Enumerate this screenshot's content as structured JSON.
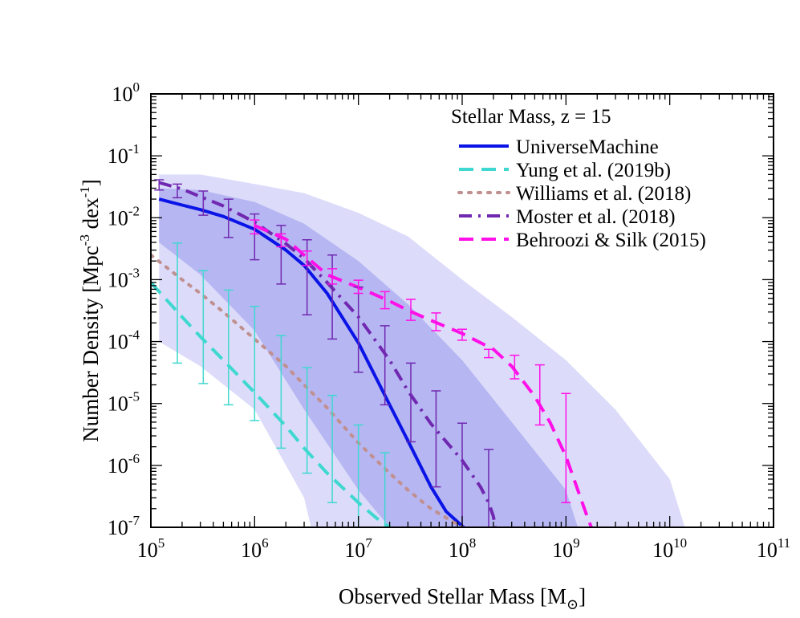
{
  "chart_data": {
    "type": "line",
    "title": "",
    "xlabel": "Observed Stellar Mass [M",
    "xlabel_sub": "⊙",
    "xlabel_close": "]",
    "ylabel": "Number Density [Mpc",
    "ylabel_exp1": "-3",
    "ylabel_mid": " dex",
    "ylabel_exp2": "-1",
    "ylabel_close": "]",
    "xscale": "log",
    "yscale": "log",
    "xlim": [
      100000,
      100000000000
    ],
    "ylim": [
      1e-07,
      1
    ],
    "x_ticks": [
      {
        "base": "10",
        "exp": "5"
      },
      {
        "base": "10",
        "exp": "6"
      },
      {
        "base": "10",
        "exp": "7"
      },
      {
        "base": "10",
        "exp": "8"
      },
      {
        "base": "10",
        "exp": "9"
      },
      {
        "base": "10",
        "exp": "10"
      },
      {
        "base": "10",
        "exp": "11"
      }
    ],
    "y_ticks": [
      {
        "base": "10",
        "exp": "-7"
      },
      {
        "base": "10",
        "exp": "-6"
      },
      {
        "base": "10",
        "exp": "-5"
      },
      {
        "base": "10",
        "exp": "-4"
      },
      {
        "base": "10",
        "exp": "-3"
      },
      {
        "base": "10",
        "exp": "-2"
      },
      {
        "base": "10",
        "exp": "-1"
      },
      {
        "base": "10",
        "exp": "0"
      }
    ],
    "legend_title": "Stellar Mass, z = 15",
    "legend_position": "top-right",
    "grid": false,
    "bands": [
      {
        "color": "#dcdcfa",
        "x": [
          120000,
          300000,
          1000000,
          3000000,
          10000000,
          30000000,
          100000000,
          300000000,
          1000000000,
          3000000000,
          10000000000,
          14000000000,
          10000000000,
          3000000000,
          1000000000,
          300000000,
          100000000,
          30000000,
          10000000,
          5000000,
          3500000,
          3000000,
          1000000,
          300000,
          120000
        ],
        "y": [
          0.05,
          0.05,
          0.035,
          0.025,
          0.012,
          0.005,
          0.001,
          0.00025,
          5e-05,
          8e-06,
          6e-07,
          1e-07,
          1e-07,
          1e-07,
          1e-07,
          1e-07,
          1e-07,
          1e-07,
          1e-07,
          1e-07,
          1e-07,
          3e-07,
          8e-06,
          4e-05,
          0.0001
        ]
      },
      {
        "color": "#b6b6f2",
        "x": [
          120000,
          300000,
          1000000,
          3000000,
          10000000,
          30000000,
          100000000,
          300000000,
          1000000000,
          1300000000,
          1000000000,
          300000000,
          100000000,
          30000000,
          20000000,
          10000000,
          3000000,
          1000000,
          300000,
          120000
        ],
        "y": [
          0.03,
          0.028,
          0.018,
          0.008,
          0.002,
          0.0004,
          5e-05,
          5e-06,
          4e-07,
          1e-07,
          1e-07,
          1e-07,
          1e-07,
          1e-07,
          1e-07,
          4e-07,
          8e-06,
          0.00015,
          0.0012,
          0.004
        ]
      }
    ],
    "series": [
      {
        "name": "UniverseMachine",
        "color": "#0a14e6",
        "dash": "solid",
        "x": [
          120000,
          200000,
          300000,
          500000,
          1000000,
          2000000,
          3000000,
          5000000,
          10000000,
          20000000,
          30000000,
          50000000,
          70000000,
          100000000,
          110000000
        ],
        "y": [
          0.02,
          0.016,
          0.0135,
          0.0105,
          0.0065,
          0.003,
          0.0017,
          0.0006,
          9.5e-05,
          9.5e-06,
          2.5e-06,
          4.5e-07,
          1.8e-07,
          1.05e-07,
          9e-08
        ]
      },
      {
        "name": "Yung et al. (2019b)",
        "color": "#3fd8d0",
        "dash": "longdash",
        "x": [
          100000,
          200000,
          300000,
          500000,
          1000000,
          2000000,
          3000000,
          5000000,
          10000000,
          15000000,
          20000000,
          25000000
        ],
        "y": [
          0.0009,
          0.00025,
          0.00012,
          5e-05,
          1.5e-05,
          4.3e-06,
          1.9e-06,
          7.5e-07,
          2.5e-07,
          1.4e-07,
          1e-07,
          8e-08
        ]
      },
      {
        "name": "Williams et al. (2018)",
        "color": "#c09090",
        "dash": "dotted",
        "x": [
          100000,
          200000,
          300000,
          500000,
          1000000,
          2000000,
          3000000,
          5000000,
          10000000,
          20000000,
          30000000,
          50000000,
          100000000,
          150000000
        ],
        "y": [
          0.0025,
          0.001,
          0.0006,
          0.0003,
          0.00011,
          4e-05,
          2e-05,
          8.5e-06,
          2.3e-06,
          7.5e-07,
          4e-07,
          2e-07,
          1e-07,
          8e-08
        ]
      },
      {
        "name": "Moster et al. (2018)",
        "color": "#7028b0",
        "dash": "dashdot",
        "x": [
          120000,
          200000,
          300000,
          500000,
          1000000,
          2000000,
          3000000,
          5000000,
          10000000,
          20000000,
          30000000,
          50000000,
          100000000,
          150000000,
          180000000,
          200000000,
          210000000
        ],
        "y": [
          0.037,
          0.029,
          0.022,
          0.0155,
          0.0085,
          0.0038,
          0.0022,
          0.0009,
          0.00025,
          5e-05,
          1.6e-05,
          4.7e-06,
          1.2e-06,
          4.5e-07,
          2.5e-07,
          1.5e-07,
          9e-08
        ]
      },
      {
        "name": "Behroozi & Silk (2015)",
        "color": "#ff10e8",
        "dash": "longdash",
        "x": [
          1000000,
          2000000,
          3000000,
          5000000,
          10000000,
          20000000,
          30000000,
          50000000,
          100000000,
          200000000,
          300000000,
          500000000,
          700000000,
          1000000000,
          1300000000,
          1600000000,
          1800000000
        ],
        "y": [
          0.0075,
          0.0045,
          0.0025,
          0.0012,
          0.00075,
          0.00045,
          0.00032,
          0.00022,
          0.000135,
          7.5e-05,
          4e-05,
          1.3e-05,
          5e-06,
          1.4e-06,
          4e-07,
          1.5e-07,
          9e-08
        ]
      }
    ],
    "errorbars": [
      {
        "series": "Yung et al. (2019b)",
        "color": "#3fd8d0",
        "x": [
          180000,
          320000,
          560000,
          1000000,
          1800000,
          3200000,
          5600000,
          10000000,
          18000000
        ],
        "y": [
          0.00025,
          0.00012,
          5e-05,
          1.5e-05,
          4.3e-06,
          1.9e-06,
          7.5e-07,
          2.5e-07,
          1.2e-07
        ],
        "lo": [
          4.5e-05,
          2.1e-05,
          9.5e-06,
          5.3e-06,
          1.9e-06,
          7.5e-07,
          2.5e-07,
          1e-07,
          1e-07
        ],
        "hi": [
          0.0039,
          0.0014,
          0.00068,
          0.00037,
          0.000125,
          3.8e-05,
          1.35e-05,
          4.5e-06,
          1.6e-06
        ]
      },
      {
        "series": "Moster et al. (2018)",
        "color": "#7028b0",
        "x": [
          120000,
          180000,
          320000,
          560000,
          1000000,
          1800000,
          3200000,
          5600000,
          10000000,
          18000000,
          32000000,
          56000000,
          100000000,
          180000000
        ],
        "y": [
          0.037,
          0.03,
          0.022,
          0.015,
          0.0085,
          0.0042,
          0.002,
          0.0009,
          0.00025,
          6e-05,
          1.5e-05,
          4.5e-06,
          1.2e-06,
          3e-07
        ],
        "lo": [
          0.028,
          0.021,
          0.011,
          0.0048,
          0.0021,
          0.00085,
          0.00027,
          0.00011,
          3.2e-05,
          9.5e-06,
          2.4e-06,
          4.5e-07,
          1e-07,
          1e-07
        ],
        "hi": [
          0.041,
          0.035,
          0.027,
          0.02,
          0.0115,
          0.0075,
          0.0044,
          0.0025,
          0.00076,
          0.00018,
          4.5e-05,
          1.6e-05,
          4.8e-06,
          1.8e-06
        ]
      },
      {
        "series": "Behroozi & Silk (2015)",
        "color": "#ff10e8",
        "x": [
          1000000,
          1800000,
          3200000,
          5600000,
          10000000,
          18000000,
          32000000,
          56000000,
          100000000,
          180000000,
          320000000,
          560000000,
          1000000000
        ],
        "y": [
          0.0075,
          0.0042,
          0.0022,
          0.0011,
          0.00075,
          0.00045,
          0.0003,
          0.0002,
          0.000135,
          9e-05,
          4.2e-05,
          1.2e-05,
          1.4e-06
        ],
        "lo": [
          0.0055,
          0.0034,
          0.0017,
          0.00085,
          0.0006,
          0.00034,
          0.00022,
          0.00015,
          0.000105,
          5.5e-05,
          2.5e-05,
          4.5e-06,
          2.5e-07
        ],
        "hi": [
          0.0092,
          0.0055,
          0.0029,
          0.0015,
          0.00098,
          0.00064,
          0.00048,
          0.00029,
          0.000158,
          7.5e-05,
          6e-05,
          4.2e-05,
          1.45e-05
        ]
      }
    ]
  }
}
